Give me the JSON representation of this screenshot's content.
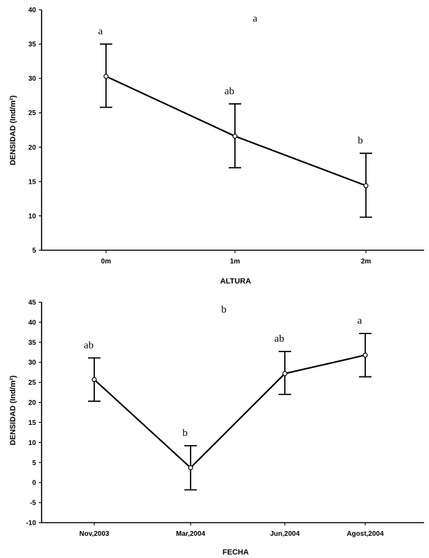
{
  "chart_data": [
    {
      "type": "line",
      "title": "a",
      "xlabel": "ALTURA",
      "ylabel": "DENSIDAD (Ind/m²)",
      "categories": [
        "0m",
        "1m",
        "2m"
      ],
      "values": [
        30.3,
        21.6,
        14.4
      ],
      "lower": [
        25.8,
        17.0,
        9.8
      ],
      "upper": [
        35.0,
        26.3,
        19.1
      ],
      "annotations": [
        "a",
        "ab",
        "b"
      ],
      "ylim": [
        5,
        40
      ],
      "yticks": [
        "5",
        "10",
        "15",
        "20",
        "25",
        "30",
        "35",
        "40"
      ],
      "grid": false,
      "legend": "none"
    },
    {
      "type": "line",
      "title": "b",
      "xlabel": "FECHA",
      "ylabel": "DENSIDAD (Ind/m²)",
      "categories": [
        "Nov,2003",
        "Mar,2004",
        "Jun,2004",
        "Agost,2004"
      ],
      "values": [
        25.7,
        3.7,
        27.2,
        31.8
      ],
      "lower": [
        20.3,
        -1.8,
        22.0,
        26.4
      ],
      "upper": [
        31.1,
        9.2,
        32.7,
        37.2
      ],
      "annotations": [
        "ab",
        "b",
        "ab",
        "a"
      ],
      "ylim": [
        -10,
        45
      ],
      "yticks": [
        "-10",
        "-5",
        "0",
        "5",
        "10",
        "15",
        "20",
        "25",
        "30",
        "35",
        "40",
        "45"
      ],
      "grid": false,
      "legend": "none"
    }
  ]
}
